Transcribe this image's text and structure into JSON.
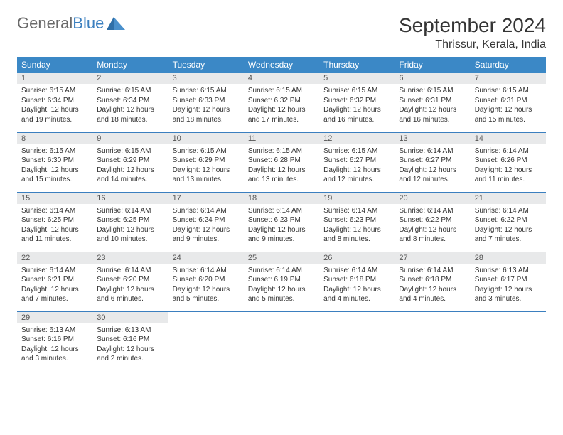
{
  "logo": {
    "word1": "General",
    "word2": "Blue"
  },
  "title": "September 2024",
  "location": "Thrissur, Kerala, India",
  "colors": {
    "header_bg": "#3b88c6",
    "header_text": "#ffffff",
    "daynum_bg": "#e8e9ea",
    "rule": "#3b7fbf",
    "logo_gray": "#6a6a6a",
    "logo_blue": "#3b7fbf"
  },
  "weekdays": [
    "Sunday",
    "Monday",
    "Tuesday",
    "Wednesday",
    "Thursday",
    "Friday",
    "Saturday"
  ],
  "weeks": [
    [
      {
        "n": "1",
        "sr": "Sunrise: 6:15 AM",
        "ss": "Sunset: 6:34 PM",
        "d1": "Daylight: 12 hours",
        "d2": "and 19 minutes."
      },
      {
        "n": "2",
        "sr": "Sunrise: 6:15 AM",
        "ss": "Sunset: 6:34 PM",
        "d1": "Daylight: 12 hours",
        "d2": "and 18 minutes."
      },
      {
        "n": "3",
        "sr": "Sunrise: 6:15 AM",
        "ss": "Sunset: 6:33 PM",
        "d1": "Daylight: 12 hours",
        "d2": "and 18 minutes."
      },
      {
        "n": "4",
        "sr": "Sunrise: 6:15 AM",
        "ss": "Sunset: 6:32 PM",
        "d1": "Daylight: 12 hours",
        "d2": "and 17 minutes."
      },
      {
        "n": "5",
        "sr": "Sunrise: 6:15 AM",
        "ss": "Sunset: 6:32 PM",
        "d1": "Daylight: 12 hours",
        "d2": "and 16 minutes."
      },
      {
        "n": "6",
        "sr": "Sunrise: 6:15 AM",
        "ss": "Sunset: 6:31 PM",
        "d1": "Daylight: 12 hours",
        "d2": "and 16 minutes."
      },
      {
        "n": "7",
        "sr": "Sunrise: 6:15 AM",
        "ss": "Sunset: 6:31 PM",
        "d1": "Daylight: 12 hours",
        "d2": "and 15 minutes."
      }
    ],
    [
      {
        "n": "8",
        "sr": "Sunrise: 6:15 AM",
        "ss": "Sunset: 6:30 PM",
        "d1": "Daylight: 12 hours",
        "d2": "and 15 minutes."
      },
      {
        "n": "9",
        "sr": "Sunrise: 6:15 AM",
        "ss": "Sunset: 6:29 PM",
        "d1": "Daylight: 12 hours",
        "d2": "and 14 minutes."
      },
      {
        "n": "10",
        "sr": "Sunrise: 6:15 AM",
        "ss": "Sunset: 6:29 PM",
        "d1": "Daylight: 12 hours",
        "d2": "and 13 minutes."
      },
      {
        "n": "11",
        "sr": "Sunrise: 6:15 AM",
        "ss": "Sunset: 6:28 PM",
        "d1": "Daylight: 12 hours",
        "d2": "and 13 minutes."
      },
      {
        "n": "12",
        "sr": "Sunrise: 6:15 AM",
        "ss": "Sunset: 6:27 PM",
        "d1": "Daylight: 12 hours",
        "d2": "and 12 minutes."
      },
      {
        "n": "13",
        "sr": "Sunrise: 6:14 AM",
        "ss": "Sunset: 6:27 PM",
        "d1": "Daylight: 12 hours",
        "d2": "and 12 minutes."
      },
      {
        "n": "14",
        "sr": "Sunrise: 6:14 AM",
        "ss": "Sunset: 6:26 PM",
        "d1": "Daylight: 12 hours",
        "d2": "and 11 minutes."
      }
    ],
    [
      {
        "n": "15",
        "sr": "Sunrise: 6:14 AM",
        "ss": "Sunset: 6:25 PM",
        "d1": "Daylight: 12 hours",
        "d2": "and 11 minutes."
      },
      {
        "n": "16",
        "sr": "Sunrise: 6:14 AM",
        "ss": "Sunset: 6:25 PM",
        "d1": "Daylight: 12 hours",
        "d2": "and 10 minutes."
      },
      {
        "n": "17",
        "sr": "Sunrise: 6:14 AM",
        "ss": "Sunset: 6:24 PM",
        "d1": "Daylight: 12 hours",
        "d2": "and 9 minutes."
      },
      {
        "n": "18",
        "sr": "Sunrise: 6:14 AM",
        "ss": "Sunset: 6:23 PM",
        "d1": "Daylight: 12 hours",
        "d2": "and 9 minutes."
      },
      {
        "n": "19",
        "sr": "Sunrise: 6:14 AM",
        "ss": "Sunset: 6:23 PM",
        "d1": "Daylight: 12 hours",
        "d2": "and 8 minutes."
      },
      {
        "n": "20",
        "sr": "Sunrise: 6:14 AM",
        "ss": "Sunset: 6:22 PM",
        "d1": "Daylight: 12 hours",
        "d2": "and 8 minutes."
      },
      {
        "n": "21",
        "sr": "Sunrise: 6:14 AM",
        "ss": "Sunset: 6:22 PM",
        "d1": "Daylight: 12 hours",
        "d2": "and 7 minutes."
      }
    ],
    [
      {
        "n": "22",
        "sr": "Sunrise: 6:14 AM",
        "ss": "Sunset: 6:21 PM",
        "d1": "Daylight: 12 hours",
        "d2": "and 7 minutes."
      },
      {
        "n": "23",
        "sr": "Sunrise: 6:14 AM",
        "ss": "Sunset: 6:20 PM",
        "d1": "Daylight: 12 hours",
        "d2": "and 6 minutes."
      },
      {
        "n": "24",
        "sr": "Sunrise: 6:14 AM",
        "ss": "Sunset: 6:20 PM",
        "d1": "Daylight: 12 hours",
        "d2": "and 5 minutes."
      },
      {
        "n": "25",
        "sr": "Sunrise: 6:14 AM",
        "ss": "Sunset: 6:19 PM",
        "d1": "Daylight: 12 hours",
        "d2": "and 5 minutes."
      },
      {
        "n": "26",
        "sr": "Sunrise: 6:14 AM",
        "ss": "Sunset: 6:18 PM",
        "d1": "Daylight: 12 hours",
        "d2": "and 4 minutes."
      },
      {
        "n": "27",
        "sr": "Sunrise: 6:14 AM",
        "ss": "Sunset: 6:18 PM",
        "d1": "Daylight: 12 hours",
        "d2": "and 4 minutes."
      },
      {
        "n": "28",
        "sr": "Sunrise: 6:13 AM",
        "ss": "Sunset: 6:17 PM",
        "d1": "Daylight: 12 hours",
        "d2": "and 3 minutes."
      }
    ],
    [
      {
        "n": "29",
        "sr": "Sunrise: 6:13 AM",
        "ss": "Sunset: 6:16 PM",
        "d1": "Daylight: 12 hours",
        "d2": "and 3 minutes."
      },
      {
        "n": "30",
        "sr": "Sunrise: 6:13 AM",
        "ss": "Sunset: 6:16 PM",
        "d1": "Daylight: 12 hours",
        "d2": "and 2 minutes."
      },
      null,
      null,
      null,
      null,
      null
    ]
  ]
}
